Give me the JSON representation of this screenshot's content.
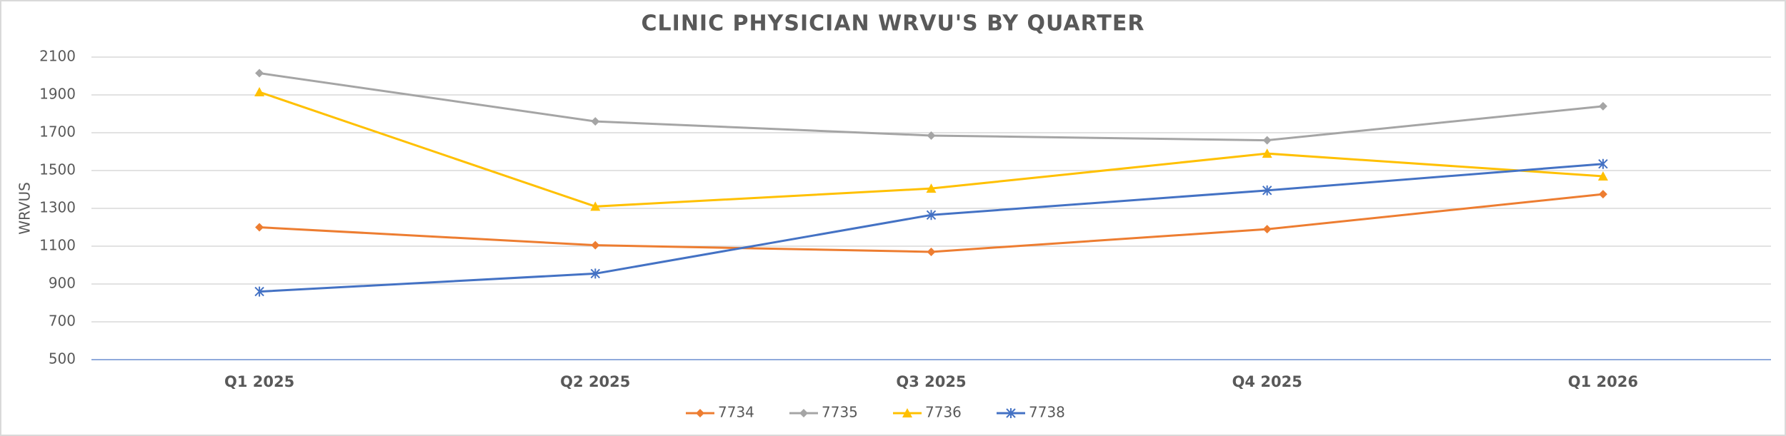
{
  "chart_data": {
    "type": "line",
    "title": "CLINIC PHYSICIAN WRVU'S BY QUARTER",
    "y_label": "WRVUS",
    "categories": [
      "Q1 2025",
      "Q2 2025",
      "Q3 2025",
      "Q4 2025",
      "Q1 2026"
    ],
    "series": [
      {
        "name": "7734",
        "color": "#ED7D31",
        "marker": "diamond",
        "values": [
          1200,
          1105,
          1070,
          1190,
          1375
        ]
      },
      {
        "name": "7735",
        "color": "#A5A5A5",
        "marker": "diamond",
        "values": [
          2015,
          1760,
          1685,
          1660,
          1840
        ]
      },
      {
        "name": "7736",
        "color": "#FFC000",
        "marker": "triangle",
        "values": [
          1915,
          1310,
          1405,
          1590,
          1470
        ]
      },
      {
        "name": "7738",
        "color": "#4472C4",
        "marker": "star",
        "values": [
          860,
          955,
          1265,
          1395,
          1535
        ]
      }
    ],
    "ylim": [
      500,
      2100
    ],
    "yticks": [
      500,
      700,
      900,
      1100,
      1300,
      1500,
      1700,
      1900,
      2100
    ],
    "grid": true,
    "legend": "bottom"
  }
}
